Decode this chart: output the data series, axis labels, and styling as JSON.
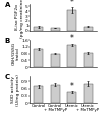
{
  "panels": [
    {
      "label": "A",
      "ylabel": "8-iso PGF2α\n(pg/mg creatinine)",
      "values": [
        0.75,
        0.55,
        4.2,
        0.85
      ],
      "errors": [
        0.12,
        0.08,
        0.55,
        0.12
      ],
      "ylim": [
        0,
        5.5
      ],
      "yticks": [
        0,
        1,
        2,
        3,
        4,
        5
      ],
      "asterisk_idx": 2
    },
    {
      "label": "B",
      "ylabel": "GSH/GSSG\n(ratio)",
      "values": [
        1.05,
        0.8,
        1.3,
        0.85
      ],
      "errors": [
        0.06,
        0.05,
        0.08,
        0.06
      ],
      "ylim": [
        0,
        1.6
      ],
      "yticks": [
        0,
        0.4,
        0.8,
        1.2,
        1.6
      ],
      "asterisk_idx": 2
    },
    {
      "label": "C",
      "ylabel": "SOD activity\n(U/mg protein)",
      "values": [
        0.7,
        0.76,
        0.45,
        0.8
      ],
      "errors": [
        0.06,
        0.07,
        0.04,
        0.11
      ],
      "ylim": [
        0,
        1.1
      ],
      "yticks": [
        0,
        0.3,
        0.6,
        0.9
      ],
      "asterisk_idx": 2
    }
  ],
  "categories": [
    "Control",
    "Control\n+ MnTMPyP",
    "Uremic",
    "Uremic\n+ MnTMPyP"
  ],
  "bar_color": "#cccccc",
  "bar_edgecolor": "#555555",
  "bar_width": 0.55,
  "panel_label_fontsize": 5,
  "tick_fontsize": 3.2,
  "ylabel_fontsize": 3.2,
  "asterisk_fontsize": 5.5,
  "cat_fontsize": 2.8
}
